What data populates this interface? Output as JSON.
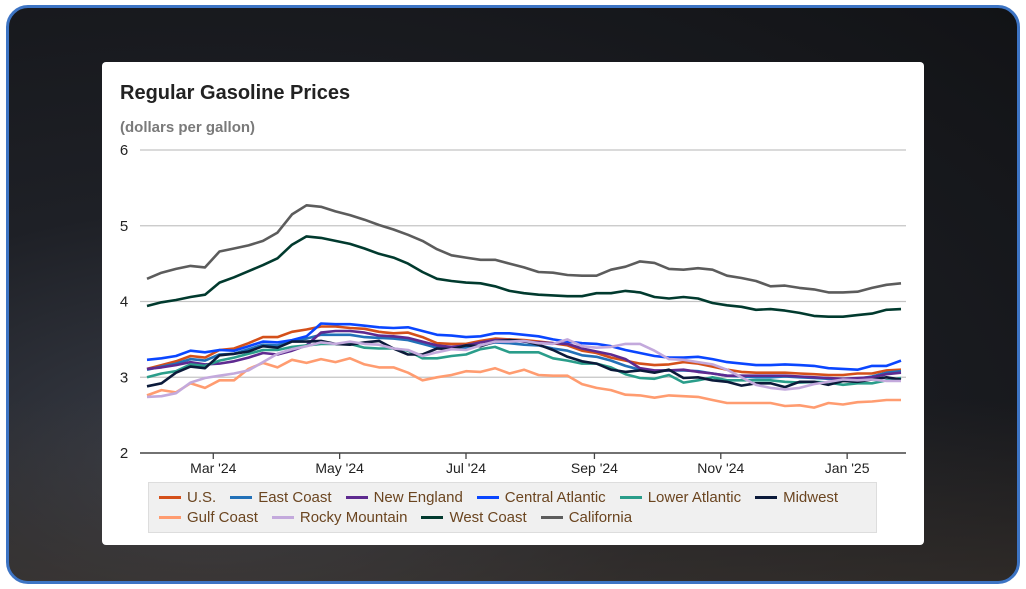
{
  "chart_data": {
    "type": "line",
    "title": "Regular Gasoline Prices",
    "subtitle": "(dollars per gallon)",
    "ylim": [
      2,
      6
    ],
    "yticks": [
      "2",
      "3",
      "4",
      "5",
      "6"
    ],
    "xticks": [
      {
        "label": "Mar '24",
        "date": "2024-03-01"
      },
      {
        "label": "May '24",
        "date": "2024-05-01"
      },
      {
        "label": "Jul '24",
        "date": "2024-07-01"
      },
      {
        "label": "Sep '24",
        "date": "2024-09-01"
      },
      {
        "label": "Nov '24",
        "date": "2024-11-01"
      },
      {
        "label": "Jan '25",
        "date": "2025-01-01"
      }
    ],
    "grid": true,
    "legend_placement": "bottom",
    "x": [
      "2024-01-29",
      "2024-02-05",
      "2024-02-12",
      "2024-02-19",
      "2024-02-26",
      "2024-03-04",
      "2024-03-11",
      "2024-03-18",
      "2024-03-25",
      "2024-04-01",
      "2024-04-08",
      "2024-04-15",
      "2024-04-22",
      "2024-04-29",
      "2024-05-06",
      "2024-05-13",
      "2024-05-20",
      "2024-05-27",
      "2024-06-03",
      "2024-06-10",
      "2024-06-17",
      "2024-06-24",
      "2024-07-01",
      "2024-07-08",
      "2024-07-15",
      "2024-07-22",
      "2024-07-29",
      "2024-08-05",
      "2024-08-12",
      "2024-08-19",
      "2024-08-26",
      "2024-09-02",
      "2024-09-09",
      "2024-09-16",
      "2024-09-23",
      "2024-09-30",
      "2024-10-07",
      "2024-10-14",
      "2024-10-21",
      "2024-10-28",
      "2024-11-04",
      "2024-11-11",
      "2024-11-18",
      "2024-11-25",
      "2024-12-02",
      "2024-12-09",
      "2024-12-16",
      "2024-12-23",
      "2024-12-30",
      "2025-01-06",
      "2025-01-13",
      "2025-01-20",
      "2025-01-27"
    ],
    "series": [
      {
        "name": "U.S.",
        "color": "#d4501a",
        "values": [
          3.11,
          3.16,
          3.21,
          3.28,
          3.26,
          3.36,
          3.38,
          3.45,
          3.53,
          3.53,
          3.6,
          3.63,
          3.67,
          3.67,
          3.65,
          3.64,
          3.6,
          3.58,
          3.59,
          3.53,
          3.45,
          3.44,
          3.44,
          3.48,
          3.51,
          3.5,
          3.49,
          3.47,
          3.45,
          3.42,
          3.35,
          3.32,
          3.26,
          3.22,
          3.18,
          3.16,
          3.17,
          3.2,
          3.18,
          3.14,
          3.1,
          3.07,
          3.06,
          3.06,
          3.06,
          3.05,
          3.04,
          3.03,
          3.03,
          3.05,
          3.05,
          3.09,
          3.1
        ]
      },
      {
        "name": "East Coast",
        "color": "#2271b8",
        "values": [
          3.1,
          3.14,
          3.18,
          3.24,
          3.22,
          3.3,
          3.31,
          3.37,
          3.43,
          3.42,
          3.48,
          3.51,
          3.56,
          3.56,
          3.56,
          3.53,
          3.52,
          3.51,
          3.49,
          3.44,
          3.39,
          3.38,
          3.39,
          3.42,
          3.46,
          3.45,
          3.43,
          3.42,
          3.38,
          3.35,
          3.29,
          3.27,
          3.22,
          3.15,
          3.1,
          3.08,
          3.09,
          3.09,
          3.08,
          3.05,
          3.02,
          3.01,
          3.0,
          3.0,
          3.01,
          3.0,
          2.99,
          2.98,
          2.98,
          2.98,
          3.01,
          3.06,
          3.08
        ]
      },
      {
        "name": "New England",
        "color": "#5e2a90",
        "values": [
          3.11,
          3.13,
          3.16,
          3.2,
          3.17,
          3.18,
          3.21,
          3.26,
          3.32,
          3.3,
          3.35,
          3.42,
          3.59,
          3.61,
          3.61,
          3.59,
          3.55,
          3.54,
          3.52,
          3.47,
          3.42,
          3.4,
          3.42,
          3.46,
          3.49,
          3.49,
          3.47,
          3.46,
          3.45,
          3.44,
          3.38,
          3.34,
          3.3,
          3.24,
          3.12,
          3.09,
          3.09,
          3.1,
          3.07,
          3.05,
          3.02,
          3.02,
          3.02,
          3.02,
          3.02,
          3.01,
          3.0,
          2.99,
          2.98,
          2.99,
          3.0,
          3.04,
          3.06
        ]
      },
      {
        "name": "Central Atlantic",
        "color": "#0a46ff",
        "values": [
          3.23,
          3.25,
          3.28,
          3.35,
          3.33,
          3.36,
          3.35,
          3.41,
          3.47,
          3.46,
          3.49,
          3.54,
          3.71,
          3.7,
          3.7,
          3.68,
          3.66,
          3.65,
          3.66,
          3.61,
          3.56,
          3.55,
          3.53,
          3.54,
          3.58,
          3.58,
          3.56,
          3.54,
          3.5,
          3.47,
          3.45,
          3.44,
          3.41,
          3.36,
          3.32,
          3.28,
          3.26,
          3.26,
          3.27,
          3.24,
          3.2,
          3.18,
          3.16,
          3.16,
          3.17,
          3.16,
          3.15,
          3.12,
          3.11,
          3.1,
          3.15,
          3.15,
          3.22
        ]
      },
      {
        "name": "Lower Atlantic",
        "color": "#2a9d8a",
        "values": [
          3.0,
          3.05,
          3.08,
          3.17,
          3.15,
          3.22,
          3.26,
          3.31,
          3.36,
          3.36,
          3.4,
          3.42,
          3.44,
          3.44,
          3.44,
          3.39,
          3.38,
          3.38,
          3.35,
          3.25,
          3.25,
          3.28,
          3.3,
          3.37,
          3.4,
          3.33,
          3.33,
          3.33,
          3.25,
          3.22,
          3.18,
          3.18,
          3.13,
          3.04,
          2.99,
          2.98,
          3.03,
          2.93,
          2.96,
          3.0,
          2.96,
          2.96,
          2.96,
          2.96,
          2.94,
          2.93,
          2.94,
          2.93,
          2.9,
          2.92,
          2.92,
          2.96,
          2.99
        ]
      },
      {
        "name": "Midwest",
        "color": "#0b1a3a",
        "values": [
          2.88,
          2.92,
          3.06,
          3.14,
          3.12,
          3.29,
          3.31,
          3.34,
          3.41,
          3.39,
          3.47,
          3.47,
          3.48,
          3.44,
          3.43,
          3.46,
          3.48,
          3.38,
          3.3,
          3.3,
          3.38,
          3.37,
          3.42,
          3.41,
          3.47,
          3.49,
          3.48,
          3.43,
          3.36,
          3.27,
          3.21,
          3.18,
          3.1,
          3.07,
          3.09,
          3.06,
          3.1,
          2.99,
          3.0,
          2.96,
          2.94,
          2.89,
          2.92,
          2.92,
          2.87,
          2.94,
          2.94,
          2.9,
          2.95,
          2.94,
          2.97,
          3.0,
          2.97
        ]
      },
      {
        "name": "Gulf Coast",
        "color": "#ff9c70",
        "values": [
          2.76,
          2.83,
          2.8,
          2.92,
          2.86,
          2.96,
          2.96,
          3.11,
          3.19,
          3.13,
          3.23,
          3.19,
          3.24,
          3.2,
          3.25,
          3.17,
          3.13,
          3.13,
          3.06,
          2.96,
          3.0,
          3.03,
          3.08,
          3.07,
          3.12,
          3.05,
          3.1,
          3.03,
          3.02,
          3.02,
          2.91,
          2.86,
          2.83,
          2.77,
          2.76,
          2.73,
          2.76,
          2.75,
          2.74,
          2.7,
          2.66,
          2.66,
          2.66,
          2.66,
          2.62,
          2.63,
          2.6,
          2.66,
          2.64,
          2.67,
          2.68,
          2.7,
          2.7
        ]
      },
      {
        "name": "Rocky Mountain",
        "color": "#c3a9dc",
        "values": [
          2.74,
          2.75,
          2.79,
          2.93,
          2.99,
          3.02,
          3.05,
          3.09,
          3.2,
          3.31,
          3.37,
          3.41,
          3.46,
          3.44,
          3.47,
          3.44,
          3.43,
          3.38,
          3.36,
          3.28,
          3.33,
          3.37,
          3.36,
          3.42,
          3.47,
          3.47,
          3.48,
          3.45,
          3.44,
          3.5,
          3.41,
          3.39,
          3.4,
          3.44,
          3.44,
          3.35,
          3.24,
          3.23,
          3.2,
          3.17,
          3.1,
          3.0,
          2.9,
          2.86,
          2.84,
          2.86,
          2.91,
          2.94,
          2.97,
          2.96,
          2.97,
          2.95,
          2.95
        ]
      },
      {
        "name": "West Coast",
        "color": "#013a2e",
        "values": [
          3.94,
          3.99,
          4.02,
          4.06,
          4.09,
          4.25,
          4.32,
          4.4,
          4.48,
          4.57,
          4.75,
          4.86,
          4.84,
          4.8,
          4.76,
          4.7,
          4.63,
          4.58,
          4.5,
          4.39,
          4.3,
          4.27,
          4.25,
          4.24,
          4.2,
          4.14,
          4.11,
          4.09,
          4.08,
          4.07,
          4.07,
          4.11,
          4.11,
          4.14,
          4.12,
          4.06,
          4.04,
          4.06,
          4.04,
          3.98,
          3.95,
          3.93,
          3.89,
          3.9,
          3.88,
          3.85,
          3.81,
          3.8,
          3.8,
          3.82,
          3.84,
          3.89,
          3.9
        ]
      },
      {
        "name": "California",
        "color": "#5c5c5c",
        "values": [
          4.3,
          4.38,
          4.43,
          4.47,
          4.45,
          4.66,
          4.7,
          4.74,
          4.8,
          4.91,
          5.15,
          5.27,
          5.25,
          5.19,
          5.14,
          5.08,
          5.01,
          4.95,
          4.88,
          4.8,
          4.69,
          4.61,
          4.58,
          4.55,
          4.55,
          4.5,
          4.45,
          4.39,
          4.38,
          4.35,
          4.34,
          4.34,
          4.42,
          4.46,
          4.53,
          4.51,
          4.43,
          4.42,
          4.44,
          4.42,
          4.34,
          4.31,
          4.27,
          4.2,
          4.21,
          4.18,
          4.16,
          4.12,
          4.12,
          4.13,
          4.18,
          4.22,
          4.24
        ]
      }
    ]
  }
}
